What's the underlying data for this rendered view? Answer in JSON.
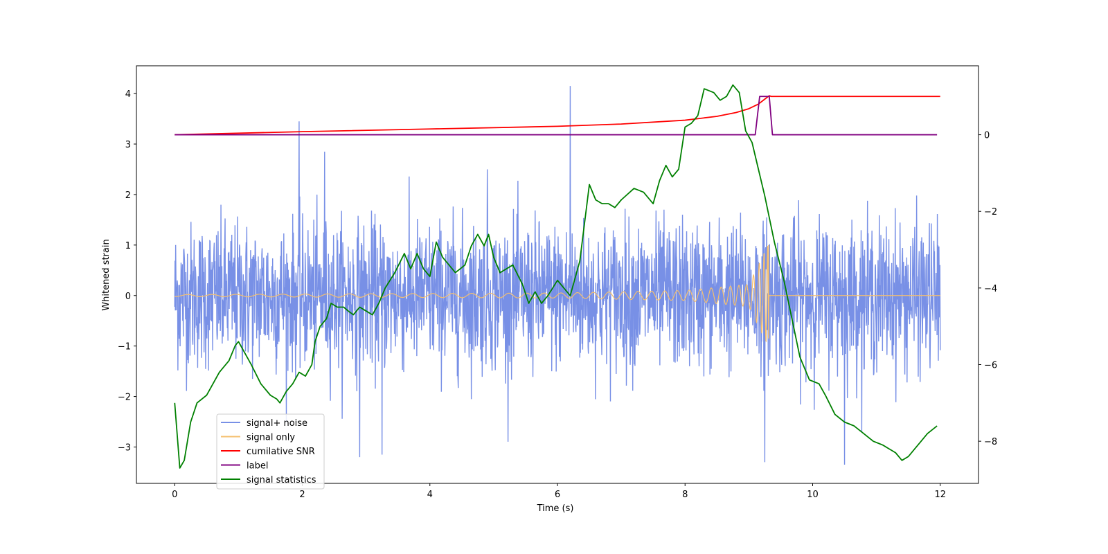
{
  "chart_data": {
    "type": "line",
    "xlabel": "Time (s)",
    "ylabel": "Whitened strain",
    "xlim": [
      -0.6,
      12.6
    ],
    "ylim": [
      -3.72,
      4.55
    ],
    "y2lim": [
      -9.1,
      1.8
    ],
    "x_ticks": [
      0,
      2,
      4,
      6,
      8,
      10,
      12
    ],
    "y_ticks": [
      -3,
      -2,
      -1,
      0,
      1,
      2,
      3,
      4
    ],
    "y2_ticks": [
      -8,
      -6,
      -4,
      -2,
      0
    ],
    "x_tick_labels": [
      "0",
      "2",
      "4",
      "6",
      "8",
      "10",
      "12"
    ],
    "y_tick_labels": [
      "−3",
      "−2",
      "−1",
      "0",
      "1",
      "2",
      "3",
      "4"
    ],
    "y2_tick_labels": [
      "−8",
      "−6",
      "−4",
      "−2",
      "0"
    ],
    "grid": false,
    "legend_position": "lower-left",
    "series": [
      {
        "name": "signal+ noise",
        "axis": "left",
        "color": "#7890e6",
        "style": "noise",
        "x_range": [
          0,
          12
        ],
        "sigma": 0.72,
        "spikes": [
          [
            1.95,
            3.45
          ],
          [
            6.2,
            4.15
          ],
          [
            2.35,
            2.85
          ],
          [
            4.9,
            2.5
          ],
          [
            9.25,
            -3.3
          ],
          [
            10.5,
            -3.35
          ],
          [
            2.9,
            -3.2
          ],
          [
            3.25,
            -3.15
          ]
        ]
      },
      {
        "name": "signal only",
        "axis": "left",
        "color": "#f5bf6e",
        "style": "chirp",
        "x_range": [
          0,
          12
        ],
        "merger_time": 9.32,
        "envelope": [
          [
            0,
            0.02
          ],
          [
            6,
            0.05
          ],
          [
            8,
            0.1
          ],
          [
            9,
            0.22
          ],
          [
            9.3,
            1.0
          ],
          [
            9.32,
            0
          ]
        ]
      },
      {
        "name": "cumilative SNR",
        "axis": "right",
        "color": "#ff0000",
        "x": [
          0,
          2,
          4,
          6,
          7,
          8,
          8.5,
          8.8,
          9.0,
          9.15,
          9.25,
          9.32,
          9.35,
          12.0
        ],
        "values": [
          0,
          0.08,
          0.15,
          0.22,
          0.28,
          0.38,
          0.48,
          0.58,
          0.68,
          0.8,
          0.93,
          1.02,
          1.0,
          1.0
        ]
      },
      {
        "name": "label",
        "axis": "right",
        "color": "#800080",
        "x": [
          0,
          9.1,
          9.17,
          9.32,
          9.37,
          11.95
        ],
        "values": [
          0,
          0,
          1.0,
          1.0,
          0,
          0
        ]
      },
      {
        "name": "signal statistics",
        "axis": "right",
        "color": "#008000",
        "x": [
          0,
          0.08,
          0.15,
          0.25,
          0.35,
          0.5,
          0.6,
          0.7,
          0.85,
          0.95,
          1.0,
          1.2,
          1.35,
          1.5,
          1.6,
          1.65,
          1.75,
          1.85,
          1.95,
          2.05,
          2.15,
          2.2,
          2.28,
          2.38,
          2.45,
          2.55,
          2.65,
          2.72,
          2.8,
          2.9,
          3.0,
          3.1,
          3.2,
          3.3,
          3.45,
          3.6,
          3.7,
          3.8,
          3.9,
          4.0,
          4.1,
          4.2,
          4.3,
          4.4,
          4.55,
          4.65,
          4.75,
          4.85,
          4.92,
          5.0,
          5.1,
          5.3,
          5.45,
          5.55,
          5.65,
          5.75,
          5.85,
          6.0,
          6.2,
          6.35,
          6.5,
          6.6,
          6.7,
          6.8,
          6.9,
          7.0,
          7.2,
          7.35,
          7.5,
          7.6,
          7.7,
          7.8,
          7.9,
          8.0,
          8.1,
          8.2,
          8.3,
          8.45,
          8.55,
          8.65,
          8.75,
          8.85,
          8.95,
          9.05,
          9.15,
          9.25,
          9.4,
          9.55,
          9.7,
          9.8,
          9.95,
          10.1,
          10.2,
          10.35,
          10.5,
          10.65,
          10.8,
          10.95,
          11.1,
          11.2,
          11.3,
          11.4,
          11.5,
          11.6,
          11.7,
          11.8,
          11.95
        ],
        "values": [
          -7.0,
          -8.7,
          -8.5,
          -7.5,
          -7.0,
          -6.8,
          -6.5,
          -6.2,
          -5.9,
          -5.5,
          -5.4,
          -6.0,
          -6.5,
          -6.8,
          -6.9,
          -7.0,
          -6.7,
          -6.5,
          -6.2,
          -6.3,
          -6.0,
          -5.4,
          -5.0,
          -4.8,
          -4.4,
          -4.5,
          -4.5,
          -4.6,
          -4.7,
          -4.5,
          -4.6,
          -4.7,
          -4.4,
          -4.0,
          -3.6,
          -3.1,
          -3.5,
          -3.1,
          -3.5,
          -3.7,
          -2.8,
          -3.2,
          -3.4,
          -3.6,
          -3.4,
          -2.9,
          -2.6,
          -2.9,
          -2.6,
          -3.2,
          -3.6,
          -3.4,
          -3.9,
          -4.4,
          -4.1,
          -4.4,
          -4.2,
          -3.8,
          -4.2,
          -3.3,
          -1.3,
          -1.7,
          -1.8,
          -1.8,
          -1.9,
          -1.7,
          -1.4,
          -1.5,
          -1.8,
          -1.2,
          -0.8,
          -1.1,
          -0.9,
          0.2,
          0.3,
          0.5,
          1.2,
          1.1,
          0.9,
          1.0,
          1.3,
          1.1,
          0.1,
          -0.2,
          -0.9,
          -1.6,
          -2.8,
          -3.8,
          -5.0,
          -5.8,
          -6.4,
          -6.5,
          -6.8,
          -7.3,
          -7.5,
          -7.6,
          -7.8,
          -8.0,
          -8.1,
          -8.2,
          -8.3,
          -8.5,
          -8.4,
          -8.2,
          -8.0,
          -7.8,
          -7.6
        ]
      }
    ]
  }
}
